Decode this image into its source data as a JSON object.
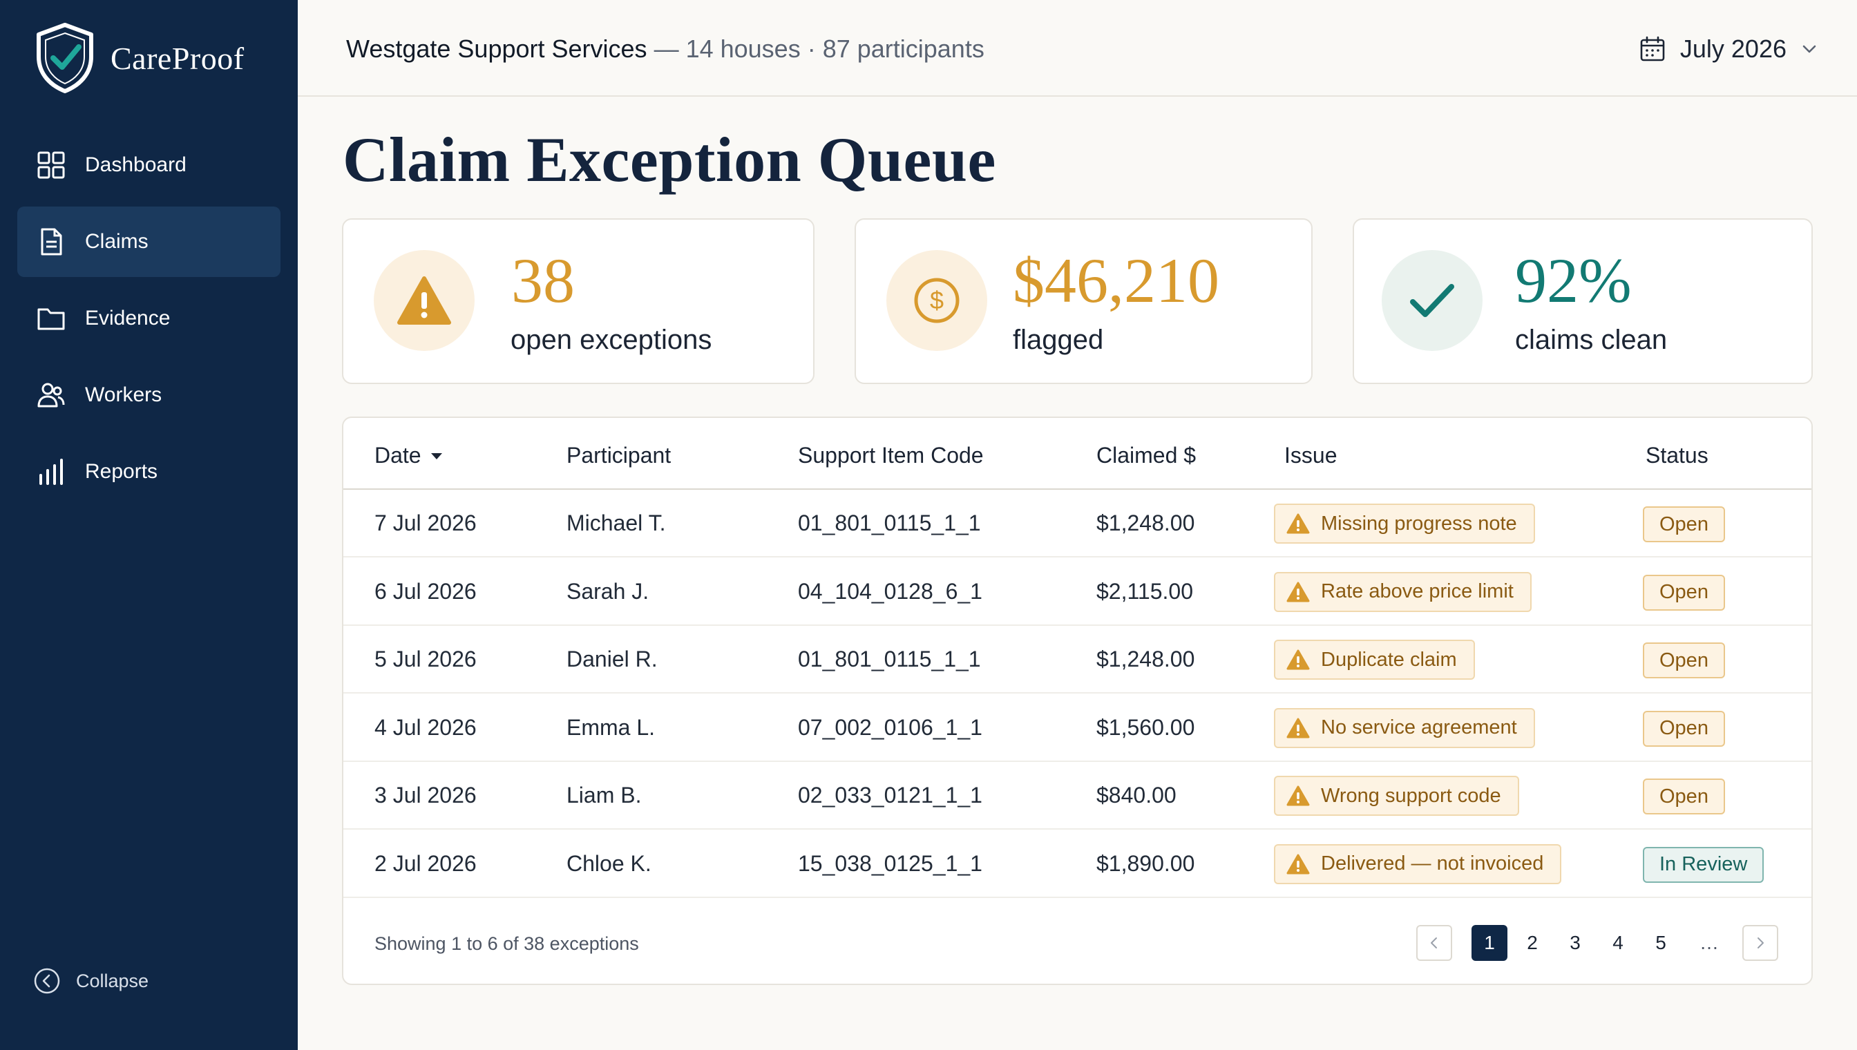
{
  "brand": {
    "name": "CareProof"
  },
  "sidebar": {
    "items": [
      {
        "label": "Dashboard",
        "icon": "dashboard-icon",
        "active": false
      },
      {
        "label": "Claims",
        "icon": "document-icon",
        "active": true
      },
      {
        "label": "Evidence",
        "icon": "folder-icon",
        "active": false
      },
      {
        "label": "Workers",
        "icon": "users-icon",
        "active": false
      },
      {
        "label": "Reports",
        "icon": "bar-chart-icon",
        "active": false
      }
    ],
    "collapse_label": "Collapse"
  },
  "header": {
    "org_name": "Westgate Support Services",
    "org_meta": " — 14 houses · 87 participants",
    "month": "July 2026"
  },
  "page_title": "Claim Exception Queue",
  "kpis": [
    {
      "value": "38",
      "label": "open exceptions",
      "icon": "warning-icon"
    },
    {
      "value": "$46,210",
      "label": "flagged",
      "icon": "dollar-icon"
    },
    {
      "value": "92%",
      "label": "claims clean",
      "icon": "check-icon"
    }
  ],
  "table": {
    "columns": {
      "date": "Date",
      "participant": "Participant",
      "code": "Support Item Code",
      "amount": "Claimed $",
      "issue": "Issue",
      "status": "Status"
    },
    "rows": [
      {
        "date": "7 Jul 2026",
        "participant": "Michael T.",
        "code": "01_801_0115_1_1",
        "amount": "$1,248.00",
        "issue": "Missing progress note",
        "status": "Open"
      },
      {
        "date": "6 Jul 2026",
        "participant": "Sarah J.",
        "code": "04_104_0128_6_1",
        "amount": "$2,115.00",
        "issue": "Rate above price limit",
        "status": "Open"
      },
      {
        "date": "5 Jul 2026",
        "participant": "Daniel R.",
        "code": "01_801_0115_1_1",
        "amount": "$1,248.00",
        "issue": "Duplicate claim",
        "status": "Open"
      },
      {
        "date": "4 Jul 2026",
        "participant": "Emma L.",
        "code": "07_002_0106_1_1",
        "amount": "$1,560.00",
        "issue": "No service agreement",
        "status": "Open"
      },
      {
        "date": "3 Jul 2026",
        "participant": "Liam B.",
        "code": "02_033_0121_1_1",
        "amount": "$840.00",
        "issue": "Wrong support code",
        "status": "Open"
      },
      {
        "date": "2 Jul 2026",
        "participant": "Chloe K.",
        "code": "15_038_0125_1_1",
        "amount": "$1,890.00",
        "issue": "Delivered — not invoiced",
        "status": "In Review"
      }
    ],
    "footer": "Showing 1 to 6 of 38 exceptions",
    "pagination": {
      "pages": [
        "1",
        "2",
        "3",
        "4",
        "5"
      ],
      "current": "1",
      "ellipsis": "…"
    }
  },
  "colors": {
    "sidebar": "#0F2746",
    "accent_amber": "#D89A2E",
    "accent_teal": "#127A73",
    "background": "#FAF9F6"
  }
}
